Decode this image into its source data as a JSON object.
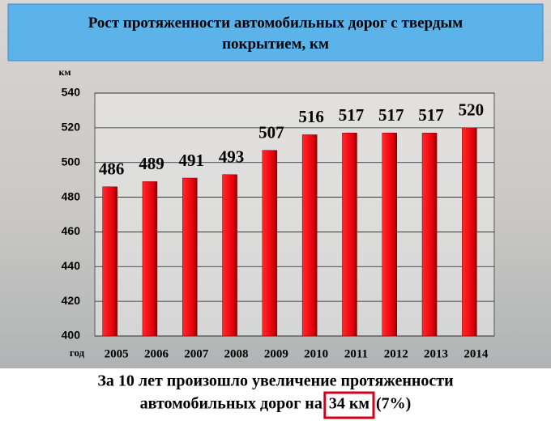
{
  "chart_data": {
    "type": "bar",
    "title": "Рост протяженности автомобильных дорог с твердым покрытием, км",
    "y_label": "км",
    "x_label": "год",
    "categories": [
      "2005",
      "2006",
      "2007",
      "2008",
      "2009",
      "2010",
      "2011",
      "2012",
      "2013",
      "2014"
    ],
    "values": [
      486,
      489,
      491,
      493,
      507,
      516,
      517,
      517,
      517,
      520
    ],
    "color": "#e8000b",
    "ylim": [
      400,
      540
    ],
    "yticks": [
      400,
      420,
      440,
      460,
      480,
      500,
      520,
      540
    ],
    "grid": true,
    "annotations": [
      "За 10 лет произошло увеличение протяженности",
      "автомобильных дорог на",
      "34 км",
      "(7%)"
    ]
  }
}
